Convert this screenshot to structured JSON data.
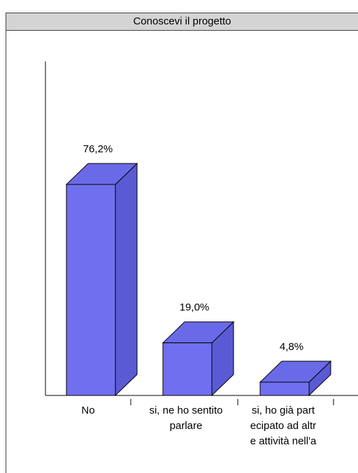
{
  "chart_data": {
    "type": "bar",
    "title": "Conoscevi il progetto",
    "categories": [
      "No",
      "si, ne ho sentito parlare",
      "si, ho già partecipato ad altre attività nell'a"
    ],
    "category_label_lines": [
      [
        "No"
      ],
      [
        "si, ne ho sentito",
        "parlare"
      ],
      [
        "si, ho già part",
        "ecipato ad altr",
        "e attività nell'a"
      ]
    ],
    "values": [
      76.2,
      19.0,
      4.8
    ],
    "data_labels": [
      "76,2%",
      "19,0%",
      "4,8%"
    ],
    "ylim": [
      0,
      100
    ],
    "style": "3d-bar",
    "colors": {
      "bar_front": "#6f6ff0",
      "bar_side": "#5a5ad4",
      "bar_top": "#6a6ae8",
      "outline": "#000000",
      "title_bg": "#d4d4d4"
    }
  }
}
